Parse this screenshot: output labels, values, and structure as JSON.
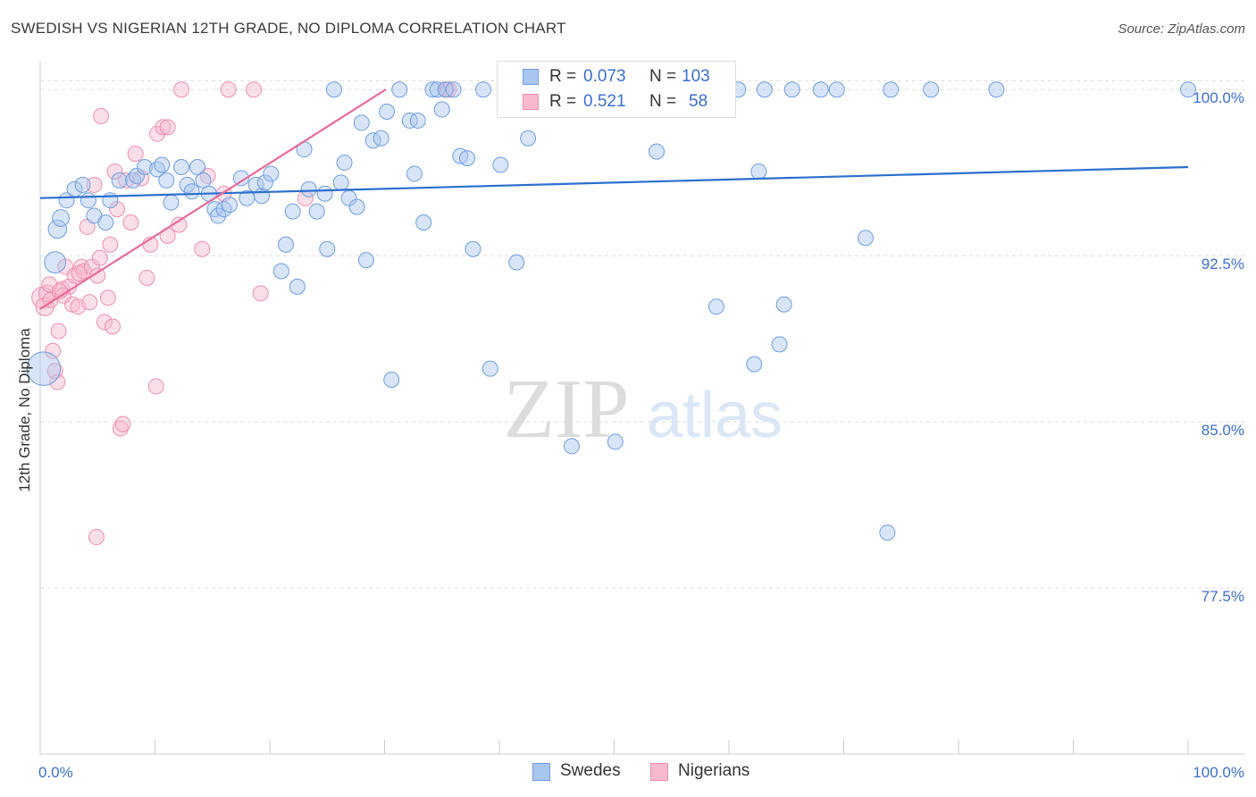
{
  "title": "SWEDISH VS NIGERIAN 12TH GRADE, NO DIPLOMA CORRELATION CHART",
  "source": "Source: ZipAtlas.com",
  "watermark": {
    "zip": "ZIP",
    "atlas": "atlas"
  },
  "legend": {
    "swedes": {
      "r_label": "R =",
      "r_value": "0.073",
      "n_label": "N =",
      "n_value": "103"
    },
    "nigerians": {
      "r_label": "R =",
      "r_value": "0.521",
      "n_label": "N =",
      "n_value": "58"
    }
  },
  "bottom_legend": {
    "swedes": "Swedes",
    "nigerians": "Nigerians"
  },
  "colors": {
    "swedes_fill": "#a9c6f0",
    "swedes_stroke": "#6f9de0",
    "swedes_line": "#2b6fcf",
    "nigerians_fill": "#f7b9cc",
    "nigerians_stroke": "#ee8fae",
    "nigerians_line": "#e86b96",
    "tick_label": "#3b6fcf",
    "grid": "#dddddd"
  },
  "chart_data": {
    "type": "scatter",
    "title": "SWEDISH VS NIGERIAN 12TH GRADE, NO DIPLOMA CORRELATION CHART",
    "xlabel": "",
    "ylabel": "12th Grade, No Diploma",
    "xlim": [
      0,
      100
    ],
    "ylim": [
      70,
      101.3
    ],
    "x_tick_labels": [
      "0.0%",
      "100.0%"
    ],
    "y_ticks": [
      100.0,
      92.5,
      85.0,
      77.5
    ],
    "y_tick_labels": [
      "100.0%",
      "92.5%",
      "85.0%",
      "77.5%"
    ],
    "grid": "horizontal dashed",
    "series": [
      {
        "name": "Swedes",
        "trend": {
          "x": [
            0,
            100
          ],
          "y": [
            95.1,
            96.5
          ]
        },
        "points": [
          [
            0.3,
            87.4,
            2.2
          ],
          [
            1.3,
            92.2,
            1.4
          ],
          [
            1.5,
            93.7,
            1.2
          ],
          [
            1.8,
            94.2,
            1.1
          ],
          [
            2.3,
            95.0,
            1.0
          ],
          [
            3.0,
            95.5,
            1.0
          ],
          [
            3.7,
            95.7,
            1.0
          ],
          [
            4.2,
            95.0,
            1.0
          ],
          [
            4.7,
            94.3,
            1.0
          ],
          [
            5.7,
            94.0,
            1.0
          ],
          [
            6.1,
            95.0,
            1.0
          ],
          [
            6.9,
            95.9,
            1.0
          ],
          [
            8.1,
            95.9,
            1.0
          ],
          [
            8.4,
            96.1,
            1.0
          ],
          [
            9.1,
            96.5,
            1.0
          ],
          [
            10.2,
            96.4,
            1.0
          ],
          [
            10.6,
            96.6,
            1.0
          ],
          [
            11.0,
            95.9,
            1.0
          ],
          [
            11.4,
            94.9,
            1.0
          ],
          [
            12.3,
            96.5,
            1.0
          ],
          [
            12.8,
            95.7,
            1.0
          ],
          [
            13.2,
            95.4,
            1.0
          ],
          [
            13.7,
            96.5,
            1.0
          ],
          [
            14.2,
            95.9,
            1.0
          ],
          [
            14.7,
            95.3,
            1.0
          ],
          [
            15.2,
            94.6,
            1.0
          ],
          [
            15.5,
            94.3,
            1.0
          ],
          [
            16.0,
            94.6,
            1.0
          ],
          [
            16.5,
            94.8,
            1.0
          ],
          [
            17.5,
            96.0,
            1.0
          ],
          [
            18.0,
            95.1,
            1.0
          ],
          [
            18.8,
            95.7,
            1.0
          ],
          [
            19.3,
            95.2,
            1.0
          ],
          [
            19.6,
            95.8,
            1.0
          ],
          [
            20.1,
            96.2,
            1.0
          ],
          [
            21.0,
            91.8,
            1.0
          ],
          [
            21.4,
            93.0,
            1.0
          ],
          [
            22.0,
            94.5,
            1.0
          ],
          [
            22.4,
            91.1,
            1.0
          ],
          [
            23.0,
            97.3,
            1.0
          ],
          [
            23.4,
            95.5,
            1.0
          ],
          [
            24.1,
            94.5,
            1.0
          ],
          [
            24.8,
            95.3,
            1.0
          ],
          [
            25.0,
            92.8,
            1.0
          ],
          [
            25.6,
            100.0,
            1.0
          ],
          [
            26.2,
            95.8,
            1.0
          ],
          [
            26.5,
            96.7,
            1.0
          ],
          [
            26.9,
            95.1,
            1.0
          ],
          [
            27.6,
            94.7,
            1.0
          ],
          [
            28.0,
            98.5,
            1.0
          ],
          [
            28.4,
            92.3,
            1.0
          ],
          [
            29.0,
            97.7,
            1.0
          ],
          [
            29.7,
            97.8,
            1.0
          ],
          [
            30.2,
            99.0,
            1.0
          ],
          [
            30.6,
            86.9,
            1.0
          ],
          [
            31.3,
            100.0,
            1.0
          ],
          [
            32.2,
            98.6,
            1.0
          ],
          [
            32.6,
            96.2,
            1.0
          ],
          [
            32.9,
            98.6,
            1.0
          ],
          [
            33.4,
            94.0,
            1.0
          ],
          [
            34.2,
            100.0,
            1.0
          ],
          [
            34.6,
            100.0,
            1.0
          ],
          [
            35.0,
            99.1,
            1.0
          ],
          [
            35.3,
            100.0,
            1.0
          ],
          [
            36.0,
            100.0,
            1.0
          ],
          [
            36.6,
            97.0,
            1.0
          ],
          [
            37.2,
            96.9,
            1.0
          ],
          [
            37.7,
            92.8,
            1.0
          ],
          [
            38.6,
            100.0,
            1.0
          ],
          [
            39.2,
            87.4,
            1.0
          ],
          [
            40.1,
            96.6,
            1.0
          ],
          [
            41.0,
            100.0,
            1.0
          ],
          [
            41.5,
            92.2,
            1.0
          ],
          [
            42.0,
            100.0,
            1.0
          ],
          [
            42.5,
            97.8,
            1.0
          ],
          [
            43.4,
            100.0,
            1.0
          ],
          [
            44.4,
            100.0,
            1.0
          ],
          [
            45.0,
            100.0,
            1.0
          ],
          [
            46.3,
            83.9,
            1.0
          ],
          [
            47.3,
            100.0,
            1.0
          ],
          [
            48.2,
            100.0,
            1.0
          ],
          [
            50.1,
            84.1,
            1.0
          ],
          [
            50.8,
            100.0,
            1.0
          ],
          [
            52.1,
            100.0,
            1.0
          ],
          [
            53.0,
            100.0,
            1.0
          ],
          [
            53.7,
            97.2,
            1.0
          ],
          [
            54.4,
            100.0,
            1.0
          ],
          [
            56.4,
            100.0,
            1.0
          ],
          [
            57.4,
            100.0,
            1.0
          ],
          [
            58.3,
            100.0,
            1.0
          ],
          [
            58.9,
            90.2,
            1.0
          ],
          [
            60.8,
            100.0,
            1.0
          ],
          [
            62.2,
            87.6,
            1.0
          ],
          [
            62.6,
            96.3,
            1.0
          ],
          [
            63.1,
            100.0,
            1.0
          ],
          [
            64.4,
            88.5,
            1.0
          ],
          [
            64.8,
            90.3,
            1.0
          ],
          [
            65.5,
            100.0,
            1.0
          ],
          [
            68.0,
            100.0,
            1.0
          ],
          [
            69.4,
            100.0,
            1.0
          ],
          [
            71.9,
            93.3,
            1.0
          ],
          [
            74.1,
            100.0,
            1.0
          ],
          [
            73.8,
            80.0,
            1.0
          ],
          [
            77.6,
            100.0,
            1.0
          ],
          [
            83.3,
            100.0,
            1.0
          ],
          [
            100.0,
            100.0,
            1.0
          ]
        ]
      },
      {
        "name": "Nigerians",
        "trend": {
          "x": [
            0,
            30.1
          ],
          "y": [
            90.1,
            100.0
          ]
        },
        "points": [
          [
            0.2,
            90.6,
            1.4
          ],
          [
            0.4,
            90.2,
            1.2
          ],
          [
            0.6,
            90.8,
            1.1
          ],
          [
            0.9,
            90.5,
            1.0
          ],
          [
            1.1,
            88.2,
            1.0
          ],
          [
            1.3,
            87.3,
            1.0
          ],
          [
            1.5,
            86.8,
            1.0
          ],
          [
            1.6,
            89.1,
            1.0
          ],
          [
            1.9,
            91.0,
            1.0
          ],
          [
            2.2,
            92.0,
            1.0
          ],
          [
            2.5,
            91.1,
            1.0
          ],
          [
            2.8,
            90.3,
            1.0
          ],
          [
            3.0,
            91.6,
            1.0
          ],
          [
            3.3,
            90.2,
            1.0
          ],
          [
            3.6,
            92.0,
            1.0
          ],
          [
            3.8,
            91.8,
            1.0
          ],
          [
            4.1,
            93.8,
            1.0
          ],
          [
            4.3,
            90.4,
            1.0
          ],
          [
            4.5,
            92.0,
            1.0
          ],
          [
            4.7,
            95.7,
            1.0
          ],
          [
            5.0,
            91.6,
            1.0
          ],
          [
            5.3,
            98.8,
            1.0
          ],
          [
            5.6,
            89.5,
            1.0
          ],
          [
            5.9,
            90.6,
            1.0
          ],
          [
            6.1,
            93.0,
            1.0
          ],
          [
            6.3,
            89.3,
            1.0
          ],
          [
            6.5,
            96.3,
            1.0
          ],
          [
            6.7,
            94.6,
            1.0
          ],
          [
            7.0,
            84.7,
            1.0
          ],
          [
            7.2,
            84.9,
            1.0
          ],
          [
            7.5,
            95.9,
            1.0
          ],
          [
            7.9,
            94.0,
            1.0
          ],
          [
            8.3,
            97.1,
            1.0
          ],
          [
            8.8,
            96.0,
            1.0
          ],
          [
            9.3,
            91.5,
            1.0
          ],
          [
            9.6,
            93.0,
            1.0
          ],
          [
            10.1,
            86.6,
            1.0
          ],
          [
            10.2,
            98.0,
            1.0
          ],
          [
            10.7,
            98.3,
            1.0
          ],
          [
            11.1,
            98.3,
            1.0
          ],
          [
            11.1,
            93.4,
            1.0
          ],
          [
            12.1,
            93.9,
            1.0
          ],
          [
            12.3,
            100.0,
            1.0
          ],
          [
            14.1,
            92.8,
            1.0
          ],
          [
            14.6,
            96.1,
            1.0
          ],
          [
            16.0,
            95.3,
            1.0
          ],
          [
            16.4,
            100.0,
            1.0
          ],
          [
            18.6,
            100.0,
            1.0
          ],
          [
            19.2,
            90.8,
            1.0
          ],
          [
            23.1,
            95.1,
            1.0
          ],
          [
            35.4,
            100.0,
            1.0
          ],
          [
            35.6,
            100.0,
            1.0
          ],
          [
            4.9,
            79.8,
            1.0
          ],
          [
            2.0,
            90.7,
            1.0
          ],
          [
            0.8,
            91.2,
            1.0
          ],
          [
            3.4,
            91.7,
            1.0
          ],
          [
            5.2,
            92.4,
            1.0
          ],
          [
            1.7,
            90.9,
            1.0
          ]
        ]
      }
    ]
  }
}
